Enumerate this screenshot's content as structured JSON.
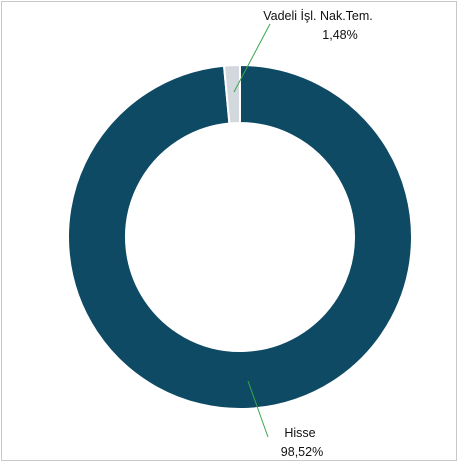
{
  "chart_data": {
    "type": "pie",
    "variant": "donut",
    "title": "",
    "legend": "none",
    "slices": [
      {
        "label": "Hisse",
        "value": 98.52,
        "value_label": "98,52%",
        "color": "#0e4a64"
      },
      {
        "label": "Vadeli İşl. Nak.Tem.",
        "value": 1.48,
        "value_label": "1,48%",
        "color": "#d3d7de"
      }
    ],
    "leader_line_color": "#3aa64a"
  }
}
